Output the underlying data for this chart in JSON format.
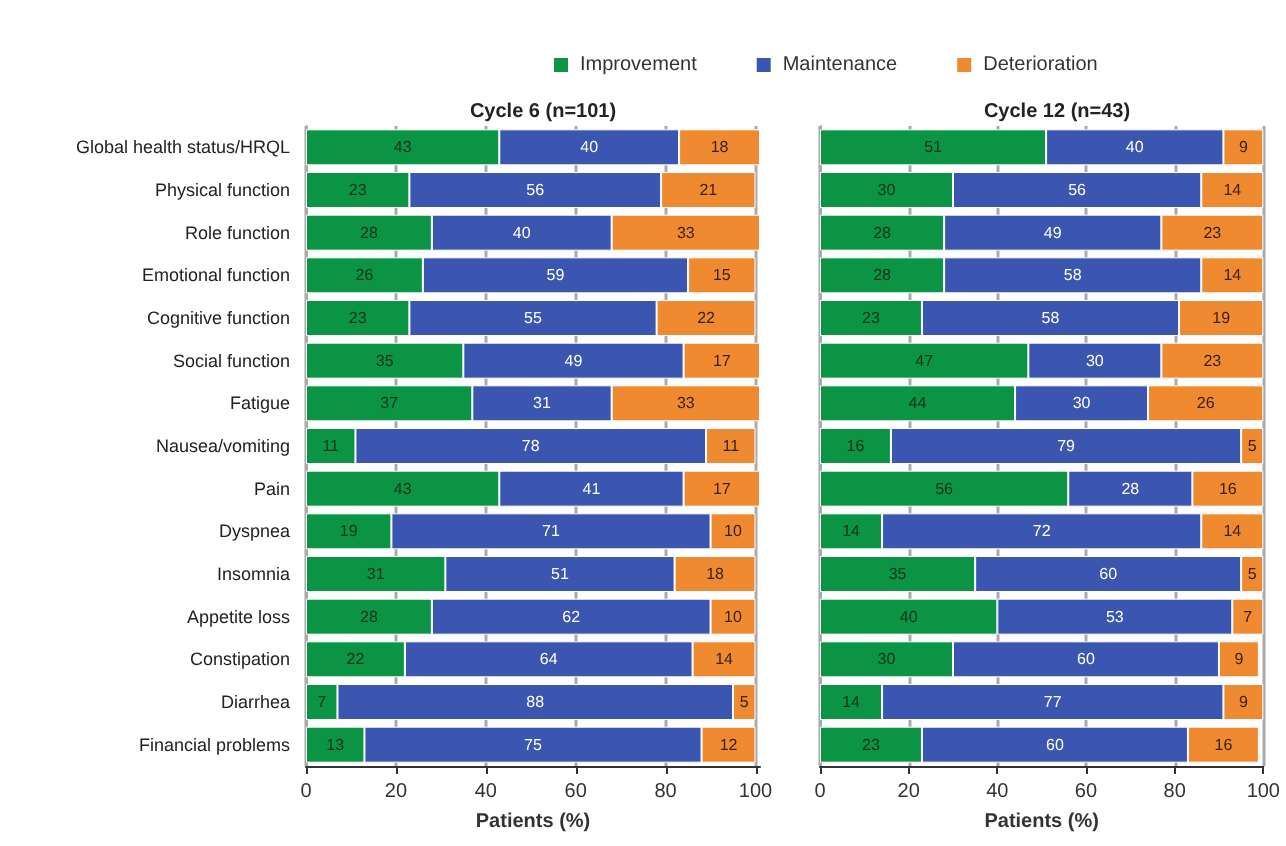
{
  "chart_data": [
    {
      "type": "bar",
      "orientation": "horizontal",
      "stacked": true,
      "title": "Cycle 6 (n=101)",
      "xlabel": "Patients (%)",
      "categories": [
        "Global health status/HRQL",
        "Physical function",
        "Role function",
        "Emotional function",
        "Cognitive function",
        "Social function",
        "Fatigue",
        "Nausea/vomiting",
        "Pain",
        "Dyspnea",
        "Insomnia",
        "Appetite loss",
        "Constipation",
        "Diarrhea",
        "Financial problems"
      ],
      "series": [
        {
          "name": "Improvement",
          "color": "#0a9444",
          "values": [
            43,
            23,
            28,
            26,
            23,
            35,
            37,
            11,
            43,
            19,
            31,
            28,
            22,
            7,
            13
          ]
        },
        {
          "name": "Maintenance",
          "color": "#3a56b0",
          "values": [
            40,
            56,
            40,
            59,
            55,
            49,
            31,
            78,
            41,
            71,
            51,
            62,
            64,
            88,
            75
          ]
        },
        {
          "name": "Deterioration",
          "color": "#f08a30",
          "values": [
            18,
            21,
            33,
            15,
            22,
            17,
            33,
            11,
            17,
            10,
            18,
            10,
            14,
            5,
            12
          ]
        }
      ],
      "xlim": [
        0,
        101
      ],
      "xticks": [
        0,
        20,
        40,
        60,
        80,
        100
      ],
      "grid": "x",
      "legend": "top",
      "data_labels": true
    },
    {
      "type": "bar",
      "orientation": "horizontal",
      "stacked": true,
      "title": "Cycle 12 (n=43)",
      "xlabel": "Patients (%)",
      "categories": [
        null,
        null,
        null,
        null,
        null,
        null,
        null,
        null,
        null,
        null,
        null,
        null,
        null,
        null,
        null
      ],
      "series": [
        {
          "color": "#0a9444",
          "values": [
            51,
            30,
            28,
            28,
            23,
            47,
            44,
            16,
            56,
            14,
            35,
            40,
            30,
            14,
            23
          ]
        },
        {
          "color": "#3a56b0",
          "values": [
            40,
            56,
            49,
            58,
            58,
            30,
            30,
            79,
            28,
            72,
            60,
            53,
            60,
            77,
            60
          ]
        },
        {
          "color": "#f08a30",
          "values": [
            9,
            14,
            23,
            14,
            19,
            23,
            26,
            5,
            16,
            14,
            5,
            7,
            9,
            9,
            16
          ]
        }
      ],
      "xlim": [
        0,
        100
      ],
      "xticks": [
        0,
        20,
        40,
        60,
        80,
        100
      ],
      "grid": "x",
      "tick_labels": "x",
      "data_labels": true
    }
  ]
}
